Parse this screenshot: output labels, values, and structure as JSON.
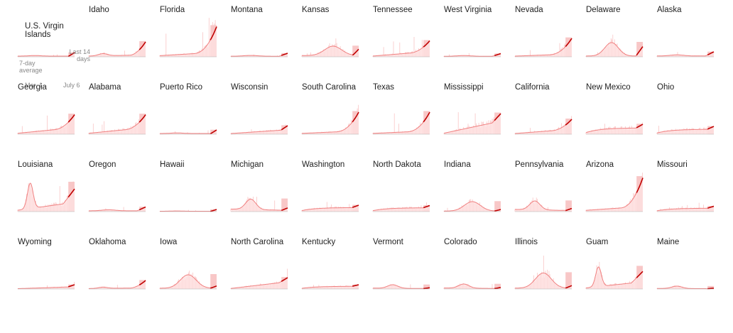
{
  "colors": {
    "bar": "#f9c4c4",
    "area": "#fde3e3",
    "line": "#f08080",
    "recent_band": "#f4a9a9",
    "recent_line": "#c00000",
    "baseline": "#b0b0b0",
    "text": "#222222",
    "annotation": "#888888"
  },
  "annotations": {
    "avg": "7-day average",
    "recent": "Last 14 days",
    "start": "Mar. 1",
    "end": "July 6"
  },
  "chart_data": {
    "type": "area",
    "shape_key": [
      "flat",
      "slow",
      "rise",
      "grow",
      "fast",
      "explode",
      "bump",
      "spike",
      "hump",
      "rebound",
      "stable",
      "plateau",
      "late",
      "lowrise",
      "mid"
    ],
    "series": [
      {
        "name": "U.S. Virgin Islands",
        "shape": "flat",
        "peak": 0.12
      },
      {
        "name": "Idaho",
        "shape": "late",
        "peak": 0.42
      },
      {
        "name": "Florida",
        "shape": "explode",
        "peak": 0.85
      },
      {
        "name": "Montana",
        "shape": "lowrise",
        "peak": 0.1
      },
      {
        "name": "Kansas",
        "shape": "mid",
        "peak": 0.3
      },
      {
        "name": "Tennessee",
        "shape": "fast",
        "peak": 0.45
      },
      {
        "name": "West Virginia",
        "shape": "lowrise",
        "peak": 0.09
      },
      {
        "name": "Nevada",
        "shape": "explode",
        "peak": 0.52
      },
      {
        "name": "Delaware",
        "shape": "rebound",
        "peak": 0.4
      },
      {
        "name": "Alaska",
        "shape": "lowrise",
        "peak": 0.14
      },
      {
        "name": "Georgia",
        "shape": "fast",
        "peak": 0.55
      },
      {
        "name": "Alabama",
        "shape": "fast",
        "peak": 0.55
      },
      {
        "name": "Puerto Rico",
        "shape": "flat",
        "peak": 0.12
      },
      {
        "name": "Wisconsin",
        "shape": "slow",
        "peak": 0.24
      },
      {
        "name": "South Carolina",
        "shape": "explode",
        "peak": 0.62
      },
      {
        "name": "Texas",
        "shape": "explode",
        "peak": 0.62
      },
      {
        "name": "Mississippi",
        "shape": "grow",
        "peak": 0.58
      },
      {
        "name": "California",
        "shape": "fast",
        "peak": 0.42
      },
      {
        "name": "New Mexico",
        "shape": "plateau",
        "peak": 0.28
      },
      {
        "name": "Ohio",
        "shape": "plateau",
        "peak": 0.22
      },
      {
        "name": "Louisiana",
        "shape": "spike",
        "peak": 0.8
      },
      {
        "name": "Oregon",
        "shape": "lowrise",
        "peak": 0.13
      },
      {
        "name": "Hawaii",
        "shape": "flat",
        "peak": 0.06
      },
      {
        "name": "Michigan",
        "shape": "bump",
        "peak": 0.35
      },
      {
        "name": "Washington",
        "shape": "plateau",
        "peak": 0.18
      },
      {
        "name": "North Dakota",
        "shape": "plateau",
        "peak": 0.17
      },
      {
        "name": "Indiana",
        "shape": "hump",
        "peak": 0.28
      },
      {
        "name": "Pennsylvania",
        "shape": "bump",
        "peak": 0.3
      },
      {
        "name": "Arizona",
        "shape": "explode",
        "peak": 0.95
      },
      {
        "name": "Missouri",
        "shape": "plateau",
        "peak": 0.15
      },
      {
        "name": "Wyoming",
        "shape": "slow",
        "peak": 0.12
      },
      {
        "name": "Oklahoma",
        "shape": "late",
        "peak": 0.24
      },
      {
        "name": "Iowa",
        "shape": "hump",
        "peak": 0.4
      },
      {
        "name": "North Carolina",
        "shape": "grow",
        "peak": 0.32
      },
      {
        "name": "Kentucky",
        "shape": "plateau",
        "peak": 0.12
      },
      {
        "name": "Vermont",
        "shape": "bump",
        "peak": 0.12
      },
      {
        "name": "Colorado",
        "shape": "bump",
        "peak": 0.14
      },
      {
        "name": "Illinois",
        "shape": "hump",
        "peak": 0.45
      },
      {
        "name": "Guam",
        "shape": "spike",
        "peak": 0.62
      },
      {
        "name": "Maine",
        "shape": "bump",
        "peak": 0.08
      }
    ]
  }
}
